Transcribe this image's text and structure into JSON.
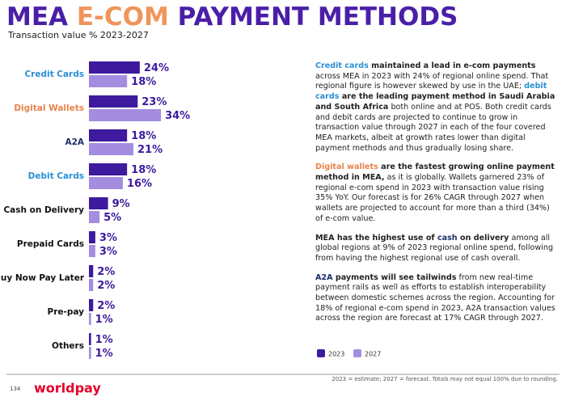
{
  "chart_data": {
    "type": "bar",
    "orientation": "horizontal",
    "title": [
      "MEA ",
      "E-COM",
      " PAYMENT METHODS"
    ],
    "title_colors": [
      "#4a1fa8",
      "#f0955a",
      "#4a1fa8"
    ],
    "subtitle": "Transaction value % 2023-2027",
    "categories": [
      "Credit Cards",
      "Digital Wallets",
      "A2A",
      "Debit Cards",
      "Cash on Delivery",
      "Prepaid Cards",
      "Buy Now Pay Later",
      "Pre-pay",
      "Others"
    ],
    "category_colors": [
      "#2a8fd4",
      "#e8834a",
      "#1c2f6b",
      "#2a8fd4",
      "#111111",
      "#111111",
      "#111111",
      "#111111",
      "#111111"
    ],
    "series": [
      {
        "name": "2023",
        "color": "#3d1a9e",
        "values": [
          24,
          23,
          18,
          18,
          9,
          3,
          2,
          2,
          1
        ],
        "value_labels": [
          "24%",
          "23%",
          "18%",
          "18%",
          "9%",
          "3%",
          "2%",
          "2%",
          "1%"
        ]
      },
      {
        "name": "2027",
        "color": "#a48de0",
        "values": [
          18,
          34,
          21,
          16,
          5,
          3,
          2,
          1,
          1
        ],
        "value_labels": [
          "18%",
          "34%",
          "21%",
          "16%",
          "5%",
          "3%",
          "2%",
          "1%",
          "1%"
        ]
      }
    ],
    "legend": "bottom-right"
  },
  "commentary": [
    [
      {
        "text": "Credit cards",
        "style": "blue"
      },
      {
        "text": " maintained a lead in e-com payments",
        "style": "bold"
      },
      {
        "text": " across MEA in 2023 with 24% of regional online spend. That regional figure is however skewed by use in the UAE; ",
        "style": "plain"
      },
      {
        "text": "debit cards",
        "style": "blue"
      },
      {
        "text": " are the leading payment method in Saudi Arabia and South Africa",
        "style": "bold"
      },
      {
        "text": " both online and at POS. Both credit cards and debit cards are projected to continue to grow in transaction value through 2027 in each of the four covered MEA markets, albeit at growth rates lower than digital payment methods and thus gradually losing share.",
        "style": "plain"
      }
    ],
    [
      {
        "text": "Digital wallets",
        "style": "orange"
      },
      {
        "text": " are the fastest growing online payment method in MEA,",
        "style": "bold"
      },
      {
        "text": " as it is globally. Wallets garnered 23% of regional e-com spend in 2023 with transaction value rising 35% YoY. Our forecast is for 26% CAGR through 2027 when wallets are projected to account for more than a third (34%) of e-com value.",
        "style": "plain"
      }
    ],
    [
      {
        "text": "MEA has the highest use of ",
        "style": "bold"
      },
      {
        "text": "cash",
        "style": "navy"
      },
      {
        "text": " on delivery",
        "style": "bold"
      },
      {
        "text": " among all global regions at 9% of 2023 regional online spend, following from having the highest regional use of cash overall.",
        "style": "plain"
      }
    ],
    [
      {
        "text": "A2A",
        "style": "navy"
      },
      {
        "text": " payments will see tailwinds",
        "style": "bold"
      },
      {
        "text": " from new real-time payment rails as well as efforts to establish interoperability between domestic schemes across the region. Accounting for 18% of regional e-com spend in 2023, A2A transaction values across the region are forecast at 17% CAGR through 2027.",
        "style": "plain"
      }
    ]
  ],
  "footer": {
    "page": "134",
    "brand": "worldpay",
    "note": "2023 = estimate; 2027 = forecast. Totals may not equal 100% due to rounding."
  }
}
